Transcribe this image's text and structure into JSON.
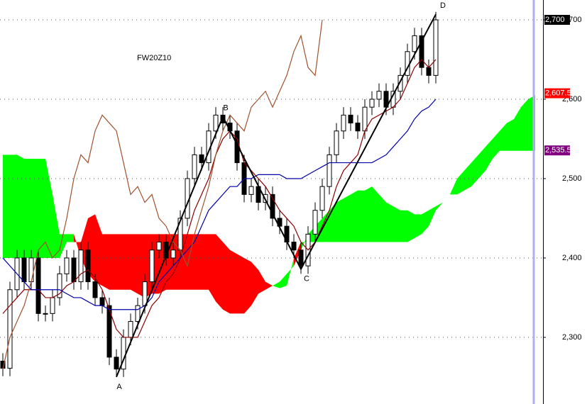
{
  "chart_data": {
    "type": "candlestick",
    "title": "FW20Z10",
    "ylim": [
      2216,
      2725
    ],
    "yticks": [
      {
        "value": 2300,
        "label": "2,300"
      },
      {
        "value": 2400,
        "label": "2,400"
      },
      {
        "value": 2500,
        "label": "2,500"
      },
      {
        "value": 2600,
        "label": "2,600"
      },
      {
        "value": 2700,
        "label": "2,700"
      }
    ],
    "grid": true,
    "candles": {
      "open": [
        2270,
        2261,
        2360,
        2400,
        2370,
        2400,
        2330,
        2330,
        2350,
        2380,
        2400,
        2370,
        2410,
        2370,
        2350,
        2340,
        2275,
        2260,
        2300,
        2320,
        2340,
        2370,
        2410,
        2420,
        2400,
        2410,
        2450,
        2500,
        2530,
        2520,
        2560,
        2580,
        2570,
        2560,
        2520,
        2480,
        2490,
        2470,
        2480,
        2450,
        2440,
        2420,
        2410,
        2390,
        2430,
        2460,
        2490,
        2530,
        2560,
        2580,
        2570,
        2560,
        2590,
        2600,
        2610,
        2590,
        2610,
        2630,
        2660,
        2680,
        2640,
        2630
      ],
      "high": [
        2280,
        2370,
        2410,
        2410,
        2410,
        2410,
        2340,
        2360,
        2390,
        2410,
        2410,
        2420,
        2420,
        2380,
        2360,
        2350,
        2285,
        2310,
        2330,
        2350,
        2380,
        2420,
        2430,
        2430,
        2420,
        2460,
        2510,
        2540,
        2540,
        2570,
        2590,
        2590,
        2580,
        2570,
        2530,
        2500,
        2500,
        2490,
        2490,
        2460,
        2450,
        2430,
        2420,
        2440,
        2470,
        2500,
        2540,
        2570,
        2590,
        2590,
        2580,
        2600,
        2610,
        2620,
        2620,
        2620,
        2640,
        2670,
        2690,
        2690,
        2650,
        2710
      ],
      "low": [
        2251,
        2251,
        2350,
        2360,
        2360,
        2320,
        2320,
        2320,
        2340,
        2370,
        2360,
        2360,
        2360,
        2340,
        2330,
        2265,
        2250,
        2250,
        2290,
        2310,
        2330,
        2360,
        2400,
        2390,
        2390,
        2400,
        2440,
        2490,
        2510,
        2510,
        2550,
        2560,
        2550,
        2510,
        2470,
        2470,
        2460,
        2460,
        2440,
        2430,
        2410,
        2400,
        2380,
        2380,
        2420,
        2450,
        2480,
        2520,
        2550,
        2560,
        2550,
        2550,
        2580,
        2590,
        2580,
        2580,
        2600,
        2620,
        2650,
        2630,
        2620,
        2620
      ],
      "close": [
        2261,
        2360,
        2400,
        2370,
        2400,
        2330,
        2330,
        2350,
        2380,
        2400,
        2370,
        2410,
        2370,
        2350,
        2340,
        2275,
        2260,
        2300,
        2320,
        2340,
        2370,
        2410,
        2420,
        2400,
        2410,
        2450,
        2500,
        2530,
        2520,
        2560,
        2580,
        2570,
        2560,
        2520,
        2480,
        2490,
        2470,
        2480,
        2450,
        2440,
        2420,
        2410,
        2390,
        2430,
        2460,
        2490,
        2530,
        2560,
        2580,
        2570,
        2560,
        2590,
        2600,
        2610,
        2590,
        2610,
        2630,
        2660,
        2680,
        2640,
        2630,
        2700
      ],
      "up_color": "#ffffff",
      "down_color": "#000000"
    },
    "cloud": {
      "span_a": [
        2530,
        2530,
        2530,
        2525,
        2525,
        2525,
        2525,
        2480,
        2430,
        2430,
        2430,
        2400,
        2380,
        2370,
        2365,
        2360,
        2360,
        2360,
        2360,
        2355,
        2350,
        2355,
        2355,
        2360,
        2360,
        2360,
        2360,
        2360,
        2360,
        2360,
        2345,
        2335,
        2330,
        2330,
        2330,
        2340,
        2355,
        2360,
        2365,
        2370,
        2380,
        2390,
        2410,
        2430,
        2440,
        2450,
        2460,
        2470,
        2475,
        2480,
        2485,
        2485,
        2490,
        2480,
        2470,
        2465,
        2460,
        2460,
        2455,
        2455,
        2460,
        2465,
        2470,
        2480,
        2500,
        2510,
        2520,
        2530,
        2540,
        2550,
        2560,
        2570,
        2575,
        2590,
        2600,
        2605
      ],
      "span_b": [
        2400,
        2400,
        2400,
        2400,
        2400,
        2400,
        2400,
        2400,
        2400,
        2420,
        2420,
        2420,
        2450,
        2455,
        2430,
        2430,
        2430,
        2430,
        2430,
        2430,
        2430,
        2430,
        2430,
        2430,
        2430,
        2430,
        2430,
        2430,
        2430,
        2430,
        2430,
        2420,
        2410,
        2405,
        2400,
        2395,
        2385,
        2370,
        2365,
        2362,
        2365,
        2400,
        2420,
        2420,
        2420,
        2420,
        2420,
        2420,
        2420,
        2420,
        2420,
        2420,
        2420,
        2420,
        2420,
        2420,
        2420,
        2420,
        2425,
        2430,
        2440,
        2460,
        2470,
        2480,
        2480,
        2485,
        2490,
        2500,
        2510,
        2525,
        2535,
        2535,
        2535,
        2535,
        2535,
        2535
      ],
      "bull_color": "#00ff00",
      "bear_color": "#ff0000"
    },
    "series": [
      {
        "color": "#8b0000",
        "values": [
          2330,
          2340,
          2350,
          2360,
          2360,
          2360,
          2350,
          2350,
          2355,
          2365,
          2370,
          2380,
          2385,
          2375,
          2360,
          2335,
          2310,
          2300,
          2300,
          2300,
          2320,
          2340,
          2350,
          2370,
          2380,
          2400,
          2430,
          2460,
          2480,
          2500,
          2530,
          2550,
          2560,
          2550,
          2520,
          2510,
          2500,
          2490,
          2475,
          2460,
          2450,
          2440,
          2420,
          2410,
          2420,
          2440,
          2460,
          2490,
          2510,
          2520,
          2530,
          2560,
          2575,
          2580,
          2585,
          2590,
          2600,
          2620,
          2640,
          2650,
          2640,
          2650
        ]
      },
      {
        "color": "#0000aa",
        "values": [
          2400,
          2390,
          2380,
          2370,
          2360,
          2360,
          2360,
          2360,
          2360,
          2355,
          2350,
          2350,
          2345,
          2340,
          2340,
          2335,
          2335,
          2335,
          2335,
          2335,
          2340,
          2350,
          2370,
          2380,
          2390,
          2400,
          2410,
          2420,
          2440,
          2460,
          2470,
          2480,
          2490,
          2490,
          2500,
          2500,
          2505,
          2505,
          2505,
          2505,
          2500,
          2500,
          2500,
          2505,
          2510,
          2515,
          2520,
          2520,
          2520,
          2520,
          2520,
          2520,
          2520,
          2525,
          2530,
          2540,
          2550,
          2560,
          2575,
          2585,
          2590,
          2600
        ]
      },
      {
        "color": "#a0522d",
        "values": [
          2260,
          2300,
          2320,
          2340,
          2370,
          2410,
          2420,
          2400,
          2410,
          2450,
          2500,
          2530,
          2520,
          2560,
          2580,
          2570,
          2560,
          2520,
          2480,
          2490,
          2470,
          2480,
          2450,
          2440,
          2420,
          2410,
          2390,
          2430,
          2460,
          2490,
          2530,
          2560,
          2580,
          2570,
          2560,
          2590,
          2600,
          2610,
          2590,
          2610,
          2630,
          2660,
          2680,
          2640,
          2630,
          2700
        ]
      }
    ],
    "pattern": {
      "labels": [
        "A",
        "B",
        "C",
        "D"
      ],
      "x": [
        16,
        31,
        42,
        61
      ],
      "values": [
        2250,
        2578,
        2386,
        2707
      ],
      "color": "#000000"
    },
    "price_labels": [
      {
        "value": 2700,
        "label": "2,700",
        "color": "#000000"
      },
      {
        "value": 2607.5,
        "label": "2,607.5",
        "color": "#ff0000"
      },
      {
        "value": 2535.5,
        "label": "2,535.5",
        "color": "#800080"
      }
    ]
  }
}
